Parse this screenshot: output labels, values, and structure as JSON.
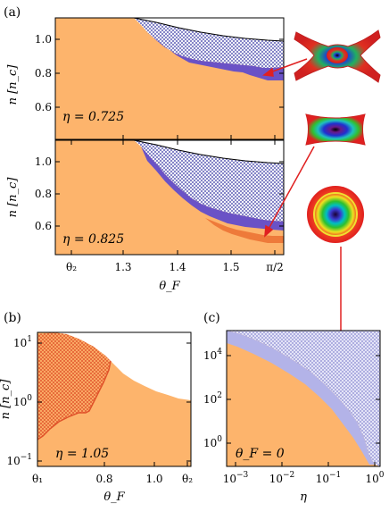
{
  "figure": {
    "panels": [
      {
        "id": "a-top",
        "panel_label": "",
        "annotation": "η = 0.725",
        "ylabel": "n [n_c]",
        "chart_data": {
          "type": "area",
          "x_range": [
            1.17,
            1.6
          ],
          "y_range": [
            0.44,
            1.18
          ],
          "yticks": [
            0.6,
            0.8,
            1.0
          ],
          "ytick_labels": [
            "0.6",
            "0.8",
            "1.0"
          ],
          "upper_boundary": {
            "x": [
              1.17,
              1.25,
              1.3,
              1.35,
              1.4,
              1.45,
              1.5,
              1.55,
              1.6
            ],
            "y": [
              1.18,
              1.13,
              1.09,
              1.06,
              1.04,
              1.02,
              1.005,
              0.99,
              0.985
            ]
          },
          "region_colors": {
            "orange": "#fdb46c",
            "hatch": "#3f3fa8",
            "purple": "#6a52c6"
          }
        }
      },
      {
        "id": "a-bottom",
        "panel_label": "",
        "annotation": "η = 0.825",
        "ylabel": "n [n_c]",
        "chart_data": {
          "type": "area",
          "x_range": [
            1.17,
            1.6
          ],
          "y_range": [
            0.44,
            1.18
          ],
          "xticks": [
            1.3,
            1.4,
            1.5
          ],
          "xtick_labels": [
            "1.3",
            "1.4",
            "1.5"
          ],
          "yticks": [
            0.6,
            0.8,
            1.0
          ],
          "ytick_labels": [
            "0.6",
            "0.8",
            "1.0"
          ],
          "xlabel": "θ_F",
          "region_colors": {
            "orange": "#fdb46c",
            "hatch": "#3f3fa8",
            "purple": "#6a52c6",
            "dark_orange": "#ee7a3a"
          }
        }
      },
      {
        "id": "b",
        "panel_label": "(b)",
        "annotation": "η = 1.05",
        "ylabel": "n [n_c]",
        "chart_data": {
          "type": "area",
          "x_range": [
            0.6,
            1.1
          ],
          "y_scale": "log",
          "y_range": [
            0.1,
            18
          ],
          "xticks": [
            0.8,
            1.0
          ],
          "xtick_labels": [
            "0.8",
            "1.0"
          ],
          "ytick_labels": [
            "10^-1",
            "10^0",
            "10^1"
          ],
          "xlabel": "θ_F",
          "region_colors": {
            "orange": "#fdb46c",
            "red_hatch": "#e0522a"
          }
        }
      },
      {
        "id": "c",
        "panel_label": "(c)",
        "annotation": "θ_F = 0",
        "chart_data": {
          "type": "area",
          "x_scale": "log",
          "y_scale": "log",
          "x_range": [
            0.0007,
            1.2
          ],
          "y_range": [
            0.1,
            100000
          ],
          "xtick_labels": [
            "10^-3",
            "10^-2",
            "10^-1",
            "10^0"
          ],
          "ytick_labels": [
            "10^0",
            "10^2",
            "10^4"
          ],
          "xlabel": "η",
          "region_colors": {
            "orange": "#fdb46c",
            "lavender": "#b3b3e8",
            "hatch": "#3f3fa8"
          }
        }
      }
    ],
    "panel_a_label": "(a)",
    "special_xticks": {
      "theta2": "θ₂",
      "pi_half": "π/2",
      "theta1": "θ₁"
    }
  }
}
